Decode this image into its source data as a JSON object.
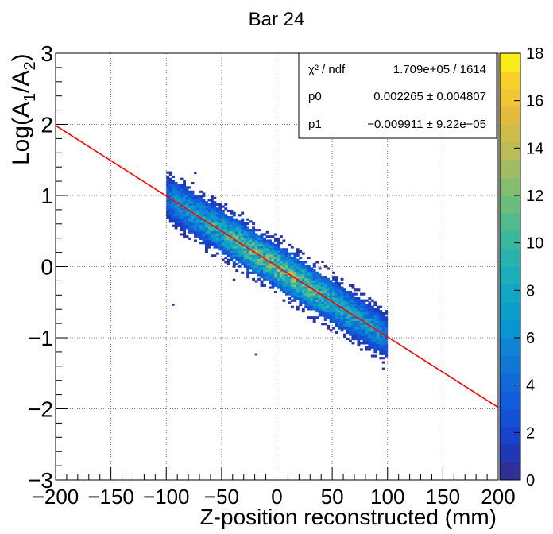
{
  "chart_data": {
    "type": "heatmap",
    "title": "Bar 24",
    "xlabel": "Z-position reconstructed (mm)",
    "ylabel": {
      "prefix": "Log(A",
      "sub1": "1",
      "mid": "/A",
      "sub2": "2",
      "suffix": ")"
    },
    "xlim": [
      -200,
      200
    ],
    "ylim": [
      -3,
      3
    ],
    "x_ticks": [
      -200,
      -150,
      -100,
      -50,
      0,
      50,
      100,
      150,
      200
    ],
    "x_tick_labels": [
      "−200",
      "−150",
      "−100",
      "−50",
      "0",
      "50",
      "100",
      "150",
      "200"
    ],
    "y_ticks": [
      -3,
      -2,
      -1,
      0,
      1,
      2,
      3
    ],
    "y_tick_labels": [
      "−3",
      "−2",
      "−1",
      "0",
      "1",
      "2",
      "3"
    ],
    "grid": true,
    "colorbar": {
      "min": 0,
      "max": 18,
      "ticks": [
        0,
        2,
        4,
        6,
        8,
        10,
        12,
        14,
        16,
        18
      ],
      "tick_labels": [
        "0",
        "2",
        "4",
        "6",
        "8",
        "10",
        "12",
        "14",
        "16",
        "18"
      ]
    },
    "histogram": {
      "x_range": [
        -100,
        100
      ],
      "bin_width_x": 2.5,
      "bin_height_y": 0.03,
      "band_center": {
        "intercept": 0.002265,
        "slope": -0.009911
      },
      "band_sigma": 0.18,
      "peak_count": 12
    },
    "fit_line": {
      "intercept": 0.002265,
      "slope": -0.009911,
      "x_range": [
        -200,
        200
      ],
      "color": "#ff0000"
    },
    "stats_box": {
      "rows": [
        {
          "label": "χ² / ndf",
          "value": "1.709e+05 / 1614"
        },
        {
          "label": "p0",
          "value": "0.002265 ± 0.004807"
        },
        {
          "label": "p1",
          "value": "−0.009911 ± 9.22e−05"
        }
      ]
    }
  }
}
